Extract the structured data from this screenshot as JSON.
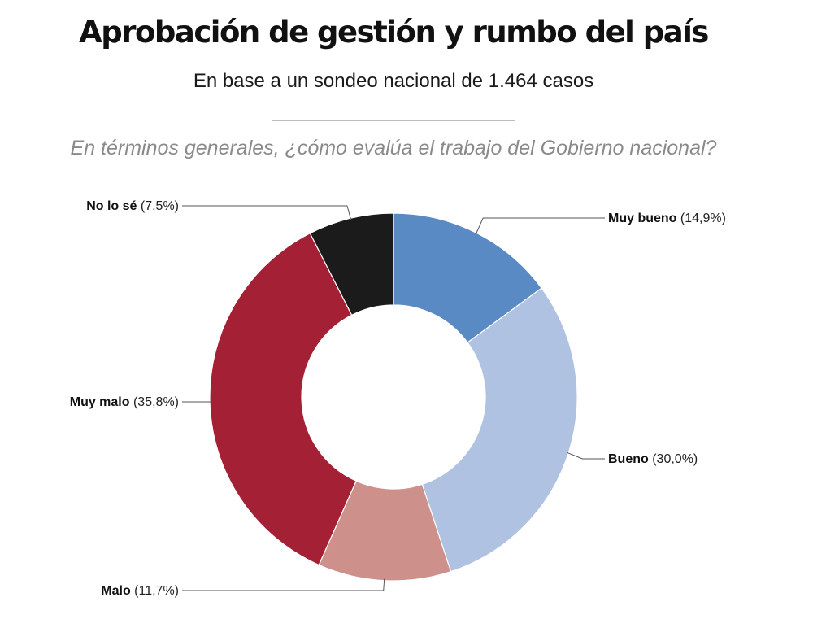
{
  "header": {
    "title": "Aprobación de gestión y rumbo del país",
    "subtitle": "En base a un sondeo nacional de 1.464 casos",
    "question": "En términos generales, ¿cómo evalúa el trabajo del Gobierno nacional?"
  },
  "chart_data": {
    "type": "pie",
    "variant": "donut",
    "slices": [
      {
        "label": "Muy bueno",
        "value": 14.9,
        "value_text": "(14,9%)",
        "color": "#5a8ac4"
      },
      {
        "label": "Bueno",
        "value": 30.0,
        "value_text": "(30,0%)",
        "color": "#b0c2e2"
      },
      {
        "label": "Malo",
        "value": 11.7,
        "value_text": "(11,7%)",
        "color": "#ce908a"
      },
      {
        "label": "Muy malo",
        "value": 35.8,
        "value_text": "(35,8%)",
        "color": "#a42035"
      },
      {
        "label": "No lo sé",
        "value": 7.5,
        "value_text": "(7,5%)",
        "color": "#1b1b1b"
      }
    ]
  }
}
